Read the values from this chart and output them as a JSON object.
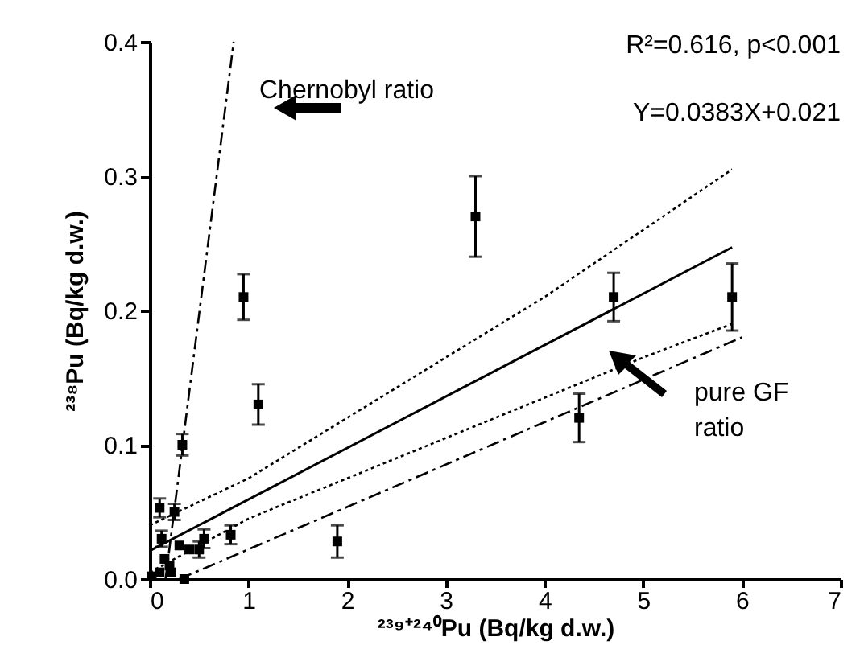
{
  "chart_data": {
    "type": "scatter",
    "xlabel": "²³⁹⁺²⁴⁰Pu (Bq/kg d.w.)",
    "ylabel": "²³⁸Pu (Bq/kg d.w.)",
    "xlim": [
      0,
      7
    ],
    "ylim": [
      0,
      0.4
    ],
    "xticks": [
      0,
      1,
      2,
      3,
      4,
      5,
      6,
      7
    ],
    "yticks": [
      {
        "value": 0,
        "label": "0.0"
      },
      0.1,
      0.2,
      0.3,
      0.4
    ],
    "grid": false,
    "annotations": [
      "R²=0.616, p<0.001",
      "Y=0.0383X+0.021",
      "Chernobyl ratio",
      "pure GF ratio"
    ],
    "series": [
      {
        "color": "#000000",
        "marker": "square",
        "x": [
          0.1,
          0.25,
          0.33,
          0.95,
          1.1,
          3.3,
          4.7,
          5.9,
          4.35,
          1.9,
          0.82,
          0.55,
          0.5,
          0.4,
          0.3,
          0.12,
          0.2,
          0.15,
          0.1,
          0.35,
          0.02,
          0.22
        ],
        "values": [
          0.053,
          0.05,
          0.1,
          0.21,
          0.13,
          0.27,
          0.21,
          0.21,
          0.12,
          0.028,
          0.033,
          0.03,
          0.022,
          0.022,
          0.025,
          0.03,
          0.01,
          0.015,
          0.005,
          0.0,
          0.002,
          0.005
        ],
        "errors": [
          0.007,
          0.006,
          0.008,
          0.017,
          0.015,
          0.03,
          0.018,
          0.025,
          0.018,
          0.012,
          0.007,
          0.007,
          0.006,
          null,
          null,
          0.006,
          null,
          null,
          null,
          null,
          null,
          null
        ]
      },
      {
        "type": "line",
        "color": "#000000",
        "line_style": "solid",
        "x": [
          0,
          5.9
        ],
        "values": [
          0.021,
          0.247
        ]
      },
      {
        "type": "line",
        "color": "#000000",
        "line_style": "dotted",
        "x": [
          0,
          1,
          2,
          3,
          4,
          5,
          5.9
        ],
        "values": [
          0.04,
          0.075,
          0.12,
          0.165,
          0.21,
          0.26,
          0.305
        ]
      },
      {
        "type": "line",
        "color": "#000000",
        "line_style": "dotted",
        "x": [
          0,
          1,
          2,
          3,
          4,
          5,
          5.9
        ],
        "values": [
          0.005,
          0.045,
          0.075,
          0.105,
          0.135,
          0.165,
          0.19
        ]
      },
      {
        "type": "line",
        "color": "#000000",
        "line_style": "dashed",
        "x": [
          0.3,
          6
        ],
        "values": [
          0,
          0.18
        ]
      },
      {
        "type": "line",
        "color": "#000000",
        "line_style": "dashed",
        "x": [
          0.16,
          0.85
        ],
        "values": [
          0,
          0.4
        ]
      }
    ]
  }
}
